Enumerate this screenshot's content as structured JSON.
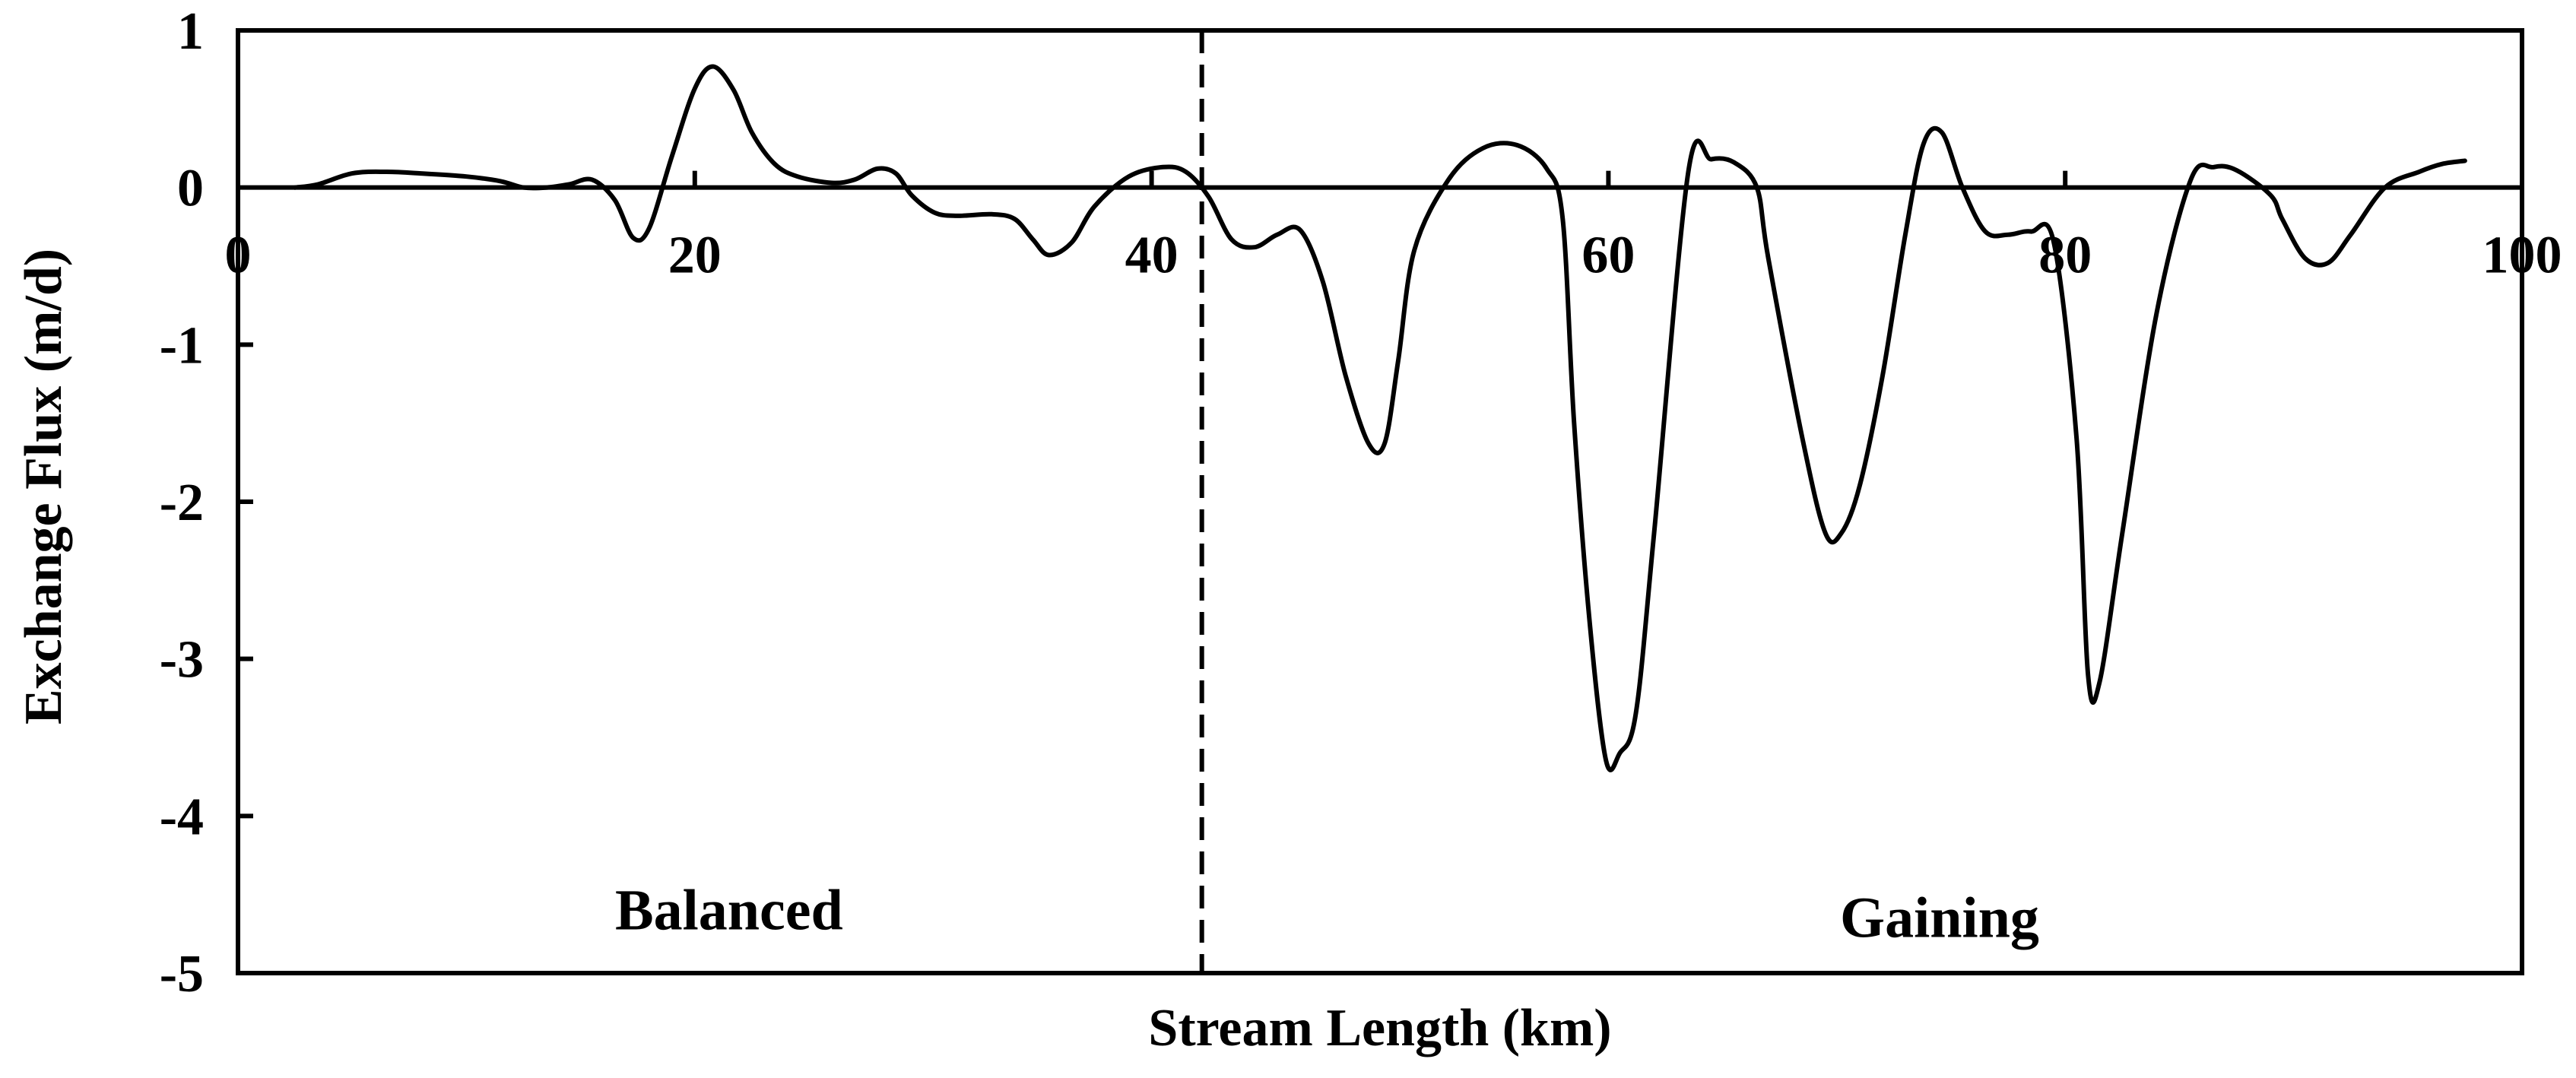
{
  "chart_data": {
    "type": "line",
    "title": "",
    "xlabel": "Stream Length (km)",
    "ylabel": "Exchange Flux (m/d)",
    "xlim": [
      0,
      100
    ],
    "ylim": [
      -5,
      1
    ],
    "x_ticks": [
      0,
      20,
      40,
      60,
      80,
      100
    ],
    "x_tick_labels": [
      "0",
      "20",
      "40",
      "60",
      "80",
      "100"
    ],
    "y_ticks": [
      1,
      0,
      -1,
      -2,
      -3,
      -4,
      -5
    ],
    "y_tick_labels": [
      "1",
      "0",
      "-1",
      "-2",
      "-3",
      "-4",
      "-5"
    ],
    "grid": false,
    "legend": "none",
    "zero_line": 0,
    "divider_x": 42.2,
    "regions": [
      {
        "label": "Balanced",
        "x": 21.5,
        "y": -4.6
      },
      {
        "label": "Gaining",
        "x": 74.5,
        "y": -4.65
      }
    ],
    "series": [
      {
        "color": "#000000",
        "x": [
          2.5,
          3.5,
          5.0,
          6.5,
          8.0,
          10.0,
          11.5,
          12.5,
          13.5,
          14.5,
          15.5,
          16.5,
          17.3,
          18.0,
          19.0,
          20.0,
          20.8,
          21.7,
          22.5,
          23.5,
          24.5,
          26.0,
          27.0,
          28.0,
          28.8,
          29.5,
          30.5,
          31.5,
          33.0,
          34.0,
          34.8,
          35.5,
          36.5,
          37.5,
          39.0,
          40.5,
          41.5,
          42.5,
          43.5,
          44.5,
          45.5,
          46.5,
          47.5,
          48.5,
          49.5,
          50.2,
          50.8,
          51.5,
          53.0,
          54.5,
          56.0,
          57.3,
          58.0,
          58.5,
          59.2,
          59.9,
          60.5,
          61.2,
          62.0,
          63.5,
          64.5,
          65.5,
          66.5,
          67.0,
          68.5,
          69.5,
          70.2,
          71.0,
          72.0,
          73.0,
          73.8,
          74.6,
          75.5,
          76.5,
          77.5,
          78.5,
          79.5,
          80.5,
          81.0,
          81.5,
          82.5,
          84.0,
          85.5,
          86.5,
          87.5,
          89.0,
          89.5,
          90.5,
          91.5,
          92.5,
          94.0,
          95.5,
          96.5,
          97.5
        ],
        "y": [
          0.0,
          0.02,
          0.09,
          0.1,
          0.09,
          0.07,
          0.04,
          0.0,
          0.0,
          0.02,
          0.05,
          -0.08,
          -0.32,
          -0.26,
          0.2,
          0.63,
          0.77,
          0.62,
          0.35,
          0.15,
          0.07,
          0.03,
          0.05,
          0.12,
          0.09,
          -0.05,
          -0.16,
          -0.18,
          -0.17,
          -0.2,
          -0.33,
          -0.43,
          -0.35,
          -0.12,
          0.07,
          0.13,
          0.1,
          -0.06,
          -0.33,
          -0.38,
          -0.3,
          -0.27,
          -0.6,
          -1.2,
          -1.63,
          -1.63,
          -1.1,
          -0.4,
          0.05,
          0.25,
          0.27,
          0.12,
          -0.2,
          -1.5,
          -2.8,
          -3.65,
          -3.6,
          -3.35,
          -2.2,
          0.1,
          0.18,
          0.16,
          0.0,
          -0.45,
          -1.6,
          -2.2,
          -2.2,
          -1.9,
          -1.2,
          -0.3,
          0.28,
          0.35,
          0.0,
          -0.28,
          -0.3,
          -0.28,
          -0.35,
          -1.6,
          -3.1,
          -3.15,
          -2.2,
          -0.8,
          0.05,
          0.13,
          0.11,
          -0.05,
          -0.2,
          -0.45,
          -0.48,
          -0.3,
          0.0,
          0.1,
          0.15,
          0.17
        ]
      }
    ]
  }
}
